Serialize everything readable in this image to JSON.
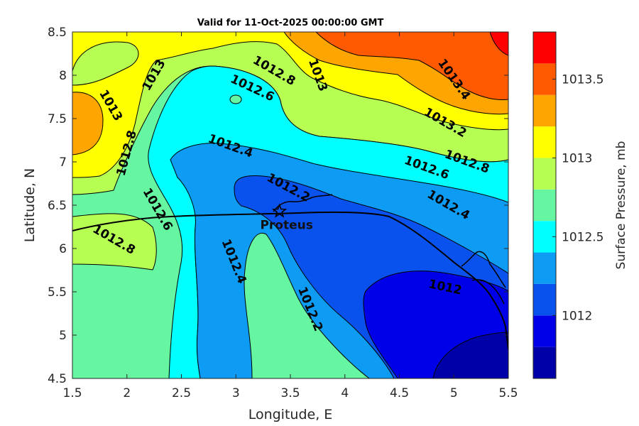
{
  "title": "Valid for 11-Oct-2025 00:00:00 GMT",
  "xlabel": "Longitude, E",
  "ylabel": "Latitude, N",
  "colorbar_label": "Surface Pressure, mb",
  "location": {
    "name": "Proteus",
    "lon": 3.4,
    "lat": 6.43
  },
  "chart_data": {
    "type": "contour-map",
    "xlim": [
      1.5,
      5.5
    ],
    "ylim": [
      4.5,
      8.5
    ],
    "xticks": [
      "1.5",
      "2",
      "2.5",
      "3",
      "3.5",
      "4",
      "4.5",
      "5",
      "5.5"
    ],
    "yticks": [
      "4.5",
      "5",
      "5.5",
      "6",
      "6.5",
      "7",
      "7.5",
      "8",
      "8.5"
    ],
    "colorbar": {
      "range": [
        1011.6,
        1013.8
      ],
      "ticks": [
        "1012",
        "1012.5",
        "1013",
        "1013.5"
      ],
      "levels": [
        1011.6,
        1011.8,
        1012.0,
        1012.2,
        1012.4,
        1012.6,
        1012.8,
        1013.0,
        1013.2,
        1013.4,
        1013.6,
        1013.8
      ],
      "colors": [
        "#0000a8",
        "#0000e8",
        "#0a52ee",
        "#0d9bf4",
        "#00ffff",
        "#66f5a0",
        "#b6fe52",
        "#ffff00",
        "#ffa500",
        "#ff5a00",
        "#ff0000",
        "#aa0000"
      ]
    },
    "contour_labels": [
      {
        "text": "1013",
        "lon": 2.25,
        "lat": 8.0,
        "angle": -60
      },
      {
        "text": "1013",
        "lon": 1.85,
        "lat": 7.65,
        "angle": 60
      },
      {
        "text": "1012.8",
        "lon": 3.35,
        "lat": 8.05,
        "angle": 30
      },
      {
        "text": "1012.6",
        "lon": 3.15,
        "lat": 7.85,
        "angle": 25
      },
      {
        "text": "1013",
        "lon": 3.75,
        "lat": 8.0,
        "angle": 70
      },
      {
        "text": "1013.4",
        "lon": 5.0,
        "lat": 7.95,
        "angle": 55
      },
      {
        "text": "1013.2",
        "lon": 4.92,
        "lat": 7.45,
        "angle": 30
      },
      {
        "text": "1012.8",
        "lon": 2.0,
        "lat": 7.1,
        "angle": -75
      },
      {
        "text": "1012.4",
        "lon": 2.95,
        "lat": 7.18,
        "angle": 20
      },
      {
        "text": "1012.8",
        "lon": 5.12,
        "lat": 7.0,
        "angle": 20
      },
      {
        "text": "1012.6",
        "lon": 4.75,
        "lat": 6.93,
        "angle": 20
      },
      {
        "text": "1012.2",
        "lon": 3.48,
        "lat": 6.7,
        "angle": 28
      },
      {
        "text": "1012.4",
        "lon": 4.95,
        "lat": 6.5,
        "angle": 30
      },
      {
        "text": "1012.6",
        "lon": 2.28,
        "lat": 6.45,
        "angle": 60
      },
      {
        "text": "1012.8",
        "lon": 1.88,
        "lat": 6.1,
        "angle": 30
      },
      {
        "text": "1012.4",
        "lon": 2.98,
        "lat": 5.85,
        "angle": 68
      },
      {
        "text": "1012.2",
        "lon": 3.68,
        "lat": 5.3,
        "angle": 68
      },
      {
        "text": "1012",
        "lon": 4.92,
        "lat": 5.55,
        "angle": 12
      }
    ]
  }
}
